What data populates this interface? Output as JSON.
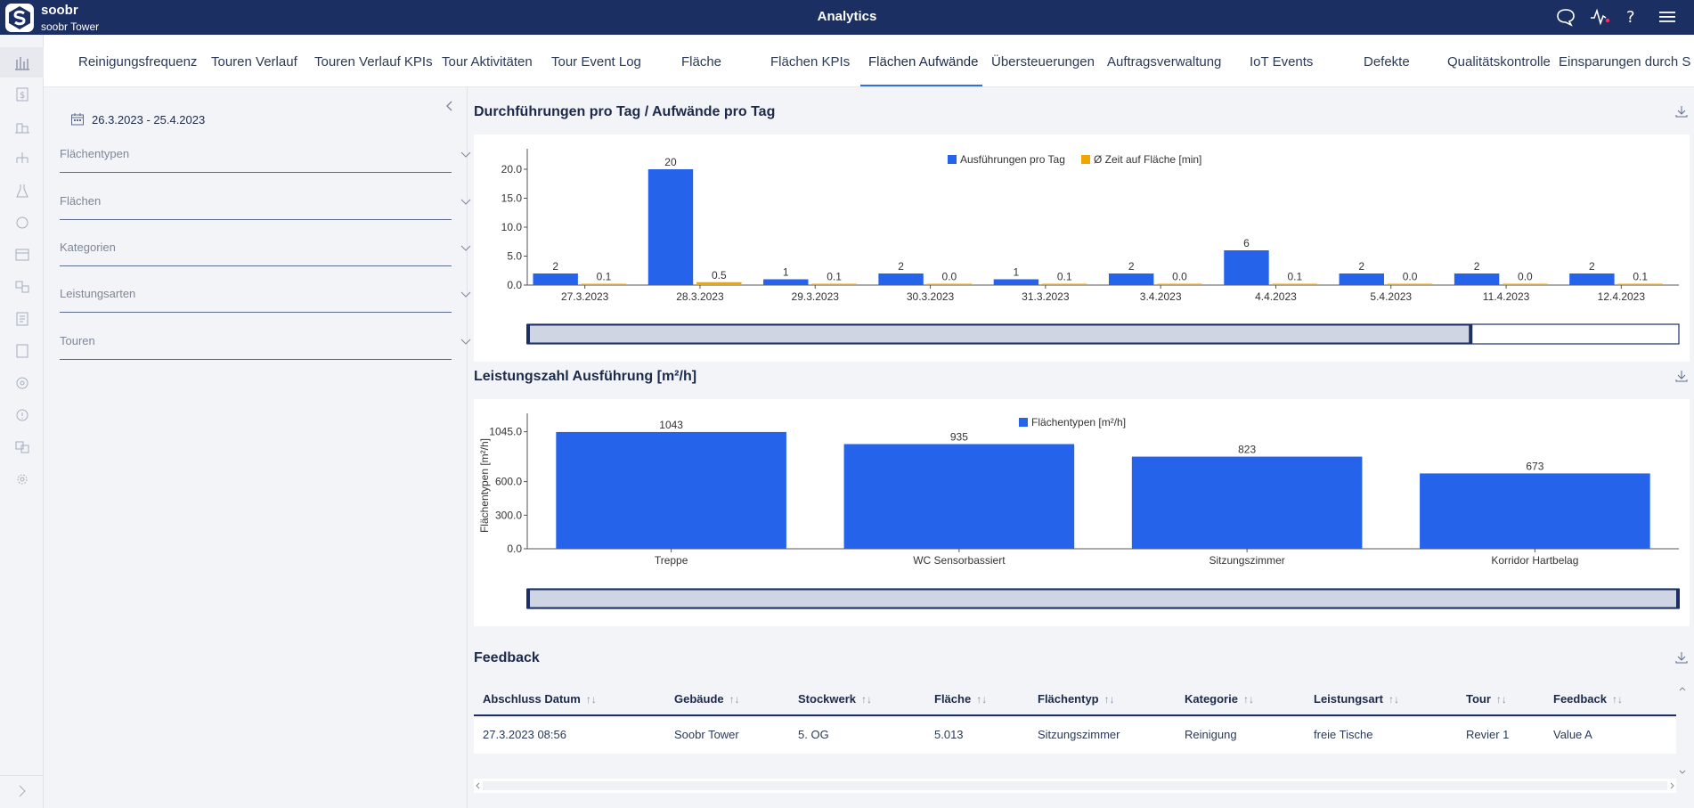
{
  "header": {
    "brand": "soobr",
    "subtitle": "soobr Tower",
    "title": "Analytics"
  },
  "tabs": [
    {
      "label": "Reinigungsfrequenz"
    },
    {
      "label": "Touren Verlauf"
    },
    {
      "label": "Touren Verlauf KPIs"
    },
    {
      "label": "Tour Aktivitäten"
    },
    {
      "label": "Tour Event Log"
    },
    {
      "label": "Fläche"
    },
    {
      "label": "Flächen KPIs"
    },
    {
      "label": "Flächen Aufwände"
    },
    {
      "label": "Übersteuerungen"
    },
    {
      "label": "Auftragsverwaltung"
    },
    {
      "label": "IoT Events"
    },
    {
      "label": "Defekte"
    },
    {
      "label": "Qualitätskontrolle"
    },
    {
      "label": "Einsparungen durch S"
    }
  ],
  "active_tab": "Flächen Aufwände",
  "filters": {
    "date_range": "26.3.2023 - 25.4.2023",
    "fields": [
      {
        "label": "Flächentypen"
      },
      {
        "label": "Flächen"
      },
      {
        "label": "Kategorien"
      },
      {
        "label": "Leistungsarten"
      },
      {
        "label": "Touren"
      }
    ]
  },
  "chart_data": [
    {
      "type": "bar",
      "title": "Durchführungen pro Tag / Aufwände pro Tag",
      "categories": [
        "27.3.2023",
        "28.3.2023",
        "29.3.2023",
        "30.3.2023",
        "31.3.2023",
        "3.4.2023",
        "4.4.2023",
        "5.4.2023",
        "11.4.2023",
        "12.4.2023"
      ],
      "series": [
        {
          "name": "Ausführungen pro Tag",
          "values": [
            2,
            20,
            1,
            2,
            1,
            2,
            6,
            2,
            2,
            2
          ],
          "labels": [
            "2",
            "20",
            "1",
            "2",
            "1",
            "2",
            "6",
            "2",
            "2",
            "2"
          ],
          "color": "#2563eb"
        },
        {
          "name": "Ø Zeit auf Fläche [min]",
          "values": [
            0.1,
            0.5,
            0.1,
            0.0,
            0.1,
            0.0,
            0.1,
            0.0,
            0.0,
            0.1
          ],
          "labels": [
            "0.1",
            "0.5",
            "0.1",
            "0.0",
            "0.1",
            "0.0",
            "0.1",
            "0.0",
            "0.0",
            "0.1"
          ],
          "color": "#f0a500"
        }
      ],
      "yticks": [
        "0.0",
        "5.0",
        "10.0",
        "15.0",
        "20.0"
      ],
      "ylim": [
        0,
        22
      ],
      "legend": "top-center",
      "zoom_window": [
        0,
        0.82
      ]
    },
    {
      "type": "bar",
      "title": "Leistungszahl Ausführung [m²/h]",
      "ylabel": "Flächentypen [m²/h]",
      "categories": [
        "Treppe",
        "WC Sensorbassiert",
        "Sitzungszimmer",
        "Korridor Hartbelag"
      ],
      "series": [
        {
          "name": "Flächentypen [m²/h]",
          "values": [
            1043,
            935,
            823,
            673
          ],
          "labels": [
            "1043",
            "935",
            "823",
            "673"
          ],
          "color": "#2563eb"
        }
      ],
      "yticks": [
        "0.0",
        "300.0",
        "600.0",
        "1045.0"
      ],
      "ytick_values": [
        0,
        300,
        600,
        1045
      ],
      "ylim": [
        0,
        1130
      ],
      "legend": "top-center",
      "zoom_window": [
        0,
        1
      ]
    }
  ],
  "feedback": {
    "title": "Feedback",
    "columns": [
      "Abschluss Datum",
      "Gebäude",
      "Stockwerk",
      "Fläche",
      "Flächentyp",
      "Kategorie",
      "Leistungsart",
      "Tour",
      "Feedback"
    ],
    "sort_glyph": "↑↓",
    "rows": [
      [
        "27.3.2023 08:56",
        "Soobr Tower",
        "5. OG",
        "5.013",
        "Sitzungszimmer",
        "Reinigung",
        "freie Tische",
        "Revier 1",
        "Value A"
      ]
    ]
  },
  "colors": {
    "header": "#1b2f63",
    "accent": "#2f6fdf",
    "bar_blue": "#2563eb",
    "bar_orange": "#f0a500"
  },
  "icons": [
    "chat-icon",
    "activity-icon",
    "help-icon",
    "menu-icon",
    "calendar-icon",
    "download-icon",
    "chevron-down-icon",
    "chevron-left-icon",
    "chevron-right-icon"
  ]
}
